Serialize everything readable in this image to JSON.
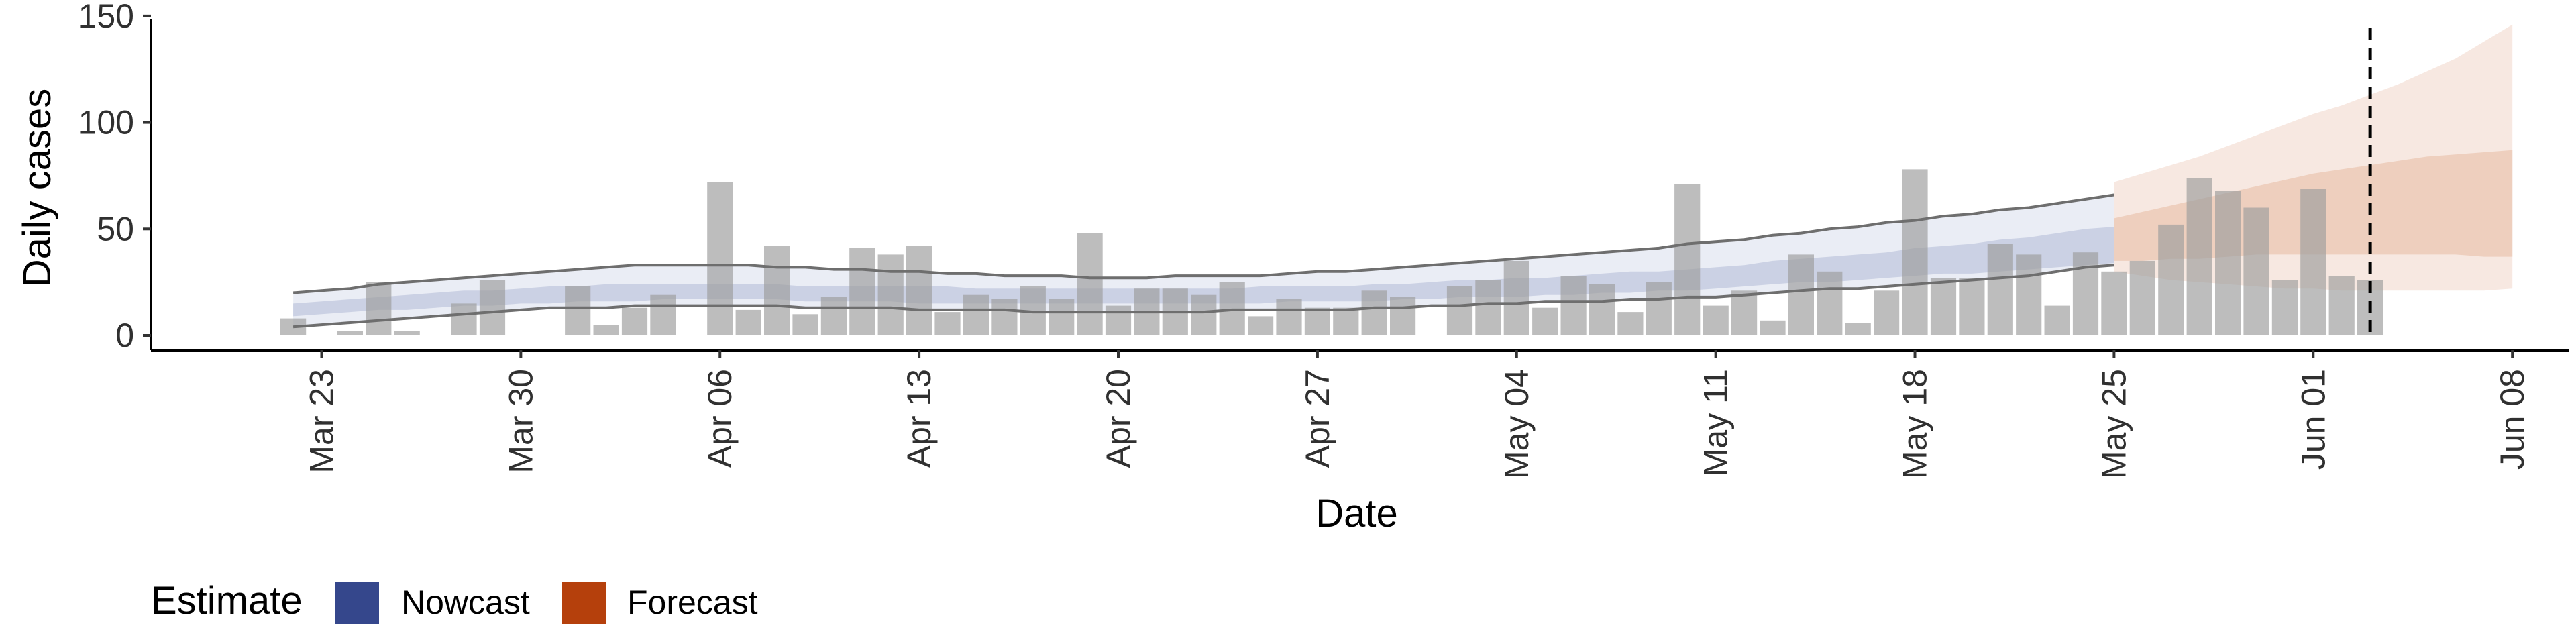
{
  "chart_data": {
    "type": "bar",
    "xlabel": "Date",
    "ylabel": "Daily cases",
    "ylim": [
      0,
      155
    ],
    "yticks": [
      0,
      50,
      100,
      150
    ],
    "x_tick_labels": [
      {
        "date": "2020-03-23",
        "label": "Mar 23"
      },
      {
        "date": "2020-03-30",
        "label": "Mar 30"
      },
      {
        "date": "2020-04-06",
        "label": "Apr 06"
      },
      {
        "date": "2020-04-13",
        "label": "Apr 13"
      },
      {
        "date": "2020-04-20",
        "label": "Apr 20"
      },
      {
        "date": "2020-04-27",
        "label": "Apr 27"
      },
      {
        "date": "2020-05-04",
        "label": "May 04"
      },
      {
        "date": "2020-05-11",
        "label": "May 11"
      },
      {
        "date": "2020-05-18",
        "label": "May 18"
      },
      {
        "date": "2020-05-25",
        "label": "May 25"
      },
      {
        "date": "2020-06-01",
        "label": "Jun 01"
      },
      {
        "date": "2020-06-08",
        "label": "Jun 08"
      }
    ],
    "xlim": [
      "2020-03-17",
      "2020-06-10"
    ],
    "vline_date": "2020-06-03",
    "grid": false,
    "legend_position": "bottom-left",
    "observed": {
      "start_date": "2020-03-22",
      "values": [
        8,
        0,
        2,
        25,
        2,
        0,
        15,
        26,
        0,
        0,
        23,
        5,
        13,
        19,
        0,
        72,
        12,
        42,
        10,
        18,
        41,
        38,
        42,
        11,
        19,
        17,
        23,
        17,
        48,
        14,
        22,
        22,
        19,
        25,
        9,
        17,
        13,
        13,
        21,
        18,
        0,
        23,
        26,
        35,
        13,
        28,
        24,
        11,
        25,
        71,
        14,
        21,
        7,
        38,
        30,
        6,
        21,
        78,
        27,
        27,
        43,
        38,
        14,
        39,
        30,
        35,
        52,
        74,
        68,
        60,
        26,
        69,
        28,
        26
      ]
    },
    "series": [
      {
        "name": "Nowcast",
        "color": "#35478C",
        "start_date": "2020-03-22",
        "median": [
          12,
          13,
          14,
          15,
          16,
          17,
          17,
          18,
          18,
          19,
          19,
          20,
          20,
          20,
          20,
          20,
          20,
          20,
          20,
          19,
          19,
          19,
          19,
          19,
          19,
          18,
          18,
          18,
          18,
          18,
          18,
          18,
          18,
          19,
          19,
          19,
          19,
          19,
          20,
          20,
          21,
          21,
          22,
          22,
          23,
          24,
          24,
          25,
          25,
          26,
          27,
          28,
          29,
          30,
          31,
          32,
          33,
          34,
          35,
          36,
          37,
          38,
          40,
          41,
          42
        ],
        "inner": {
          "lower": [
            9,
            10,
            11,
            12,
            12,
            13,
            14,
            14,
            15,
            15,
            16,
            16,
            16,
            17,
            17,
            17,
            17,
            17,
            16,
            16,
            16,
            16,
            15,
            15,
            15,
            15,
            15,
            15,
            15,
            15,
            15,
            15,
            15,
            15,
            15,
            16,
            16,
            16,
            16,
            17,
            17,
            18,
            18,
            18,
            19,
            19,
            20,
            20,
            21,
            21,
            22,
            23,
            24,
            25,
            25,
            26,
            27,
            28,
            29,
            29,
            30,
            31,
            32,
            33,
            34
          ],
          "upper": [
            15,
            16,
            17,
            18,
            19,
            20,
            21,
            21,
            22,
            23,
            23,
            24,
            24,
            24,
            24,
            24,
            24,
            24,
            23,
            23,
            23,
            23,
            23,
            23,
            22,
            22,
            22,
            22,
            22,
            22,
            22,
            22,
            22,
            22,
            23,
            23,
            23,
            23,
            24,
            24,
            25,
            26,
            26,
            27,
            27,
            28,
            29,
            30,
            30,
            31,
            32,
            33,
            35,
            36,
            37,
            38,
            39,
            41,
            42,
            43,
            45,
            46,
            48,
            50,
            51
          ]
        },
        "outer": {
          "lower": [
            4,
            5,
            6,
            7,
            8,
            9,
            10,
            11,
            12,
            13,
            13,
            13,
            14,
            14,
            14,
            14,
            14,
            14,
            13,
            13,
            13,
            13,
            12,
            12,
            12,
            12,
            11,
            11,
            11,
            11,
            11,
            11,
            11,
            12,
            12,
            12,
            12,
            12,
            13,
            13,
            14,
            14,
            15,
            15,
            16,
            16,
            16,
            17,
            17,
            18,
            18,
            19,
            20,
            21,
            22,
            22,
            23,
            24,
            25,
            26,
            27,
            28,
            30,
            32,
            33
          ],
          "upper": [
            20,
            21,
            22,
            24,
            25,
            26,
            27,
            28,
            29,
            30,
            31,
            32,
            33,
            33,
            33,
            33,
            33,
            32,
            32,
            31,
            31,
            30,
            30,
            29,
            29,
            28,
            28,
            28,
            27,
            27,
            27,
            28,
            28,
            28,
            28,
            29,
            30,
            30,
            31,
            32,
            33,
            34,
            35,
            36,
            37,
            38,
            39,
            40,
            41,
            43,
            44,
            45,
            47,
            48,
            50,
            51,
            53,
            54,
            56,
            57,
            59,
            60,
            62,
            64,
            66
          ]
        }
      },
      {
        "name": "Forecast",
        "color": "#B5400C",
        "start_date": "2020-05-25",
        "median": [
          42,
          43,
          45,
          46,
          48,
          50,
          52,
          54,
          55,
          57,
          58,
          60,
          61,
          62,
          63
        ],
        "inner": {
          "lower": [
            35,
            35,
            36,
            36,
            37,
            38,
            38,
            38,
            38,
            38,
            38,
            38,
            38,
            37,
            37
          ],
          "upper": [
            55,
            58,
            61,
            64,
            67,
            70,
            73,
            76,
            78,
            80,
            82,
            84,
            85,
            86,
            87
          ]
        },
        "outer": {
          "lower": [
            30,
            28,
            26,
            25,
            24,
            23,
            22,
            22,
            21,
            21,
            21,
            21,
            21,
            21,
            22
          ],
          "upper": [
            72,
            76,
            80,
            84,
            89,
            94,
            99,
            104,
            108,
            113,
            118,
            124,
            130,
            138,
            146
          ]
        }
      }
    ],
    "legend": {
      "title": "Estimate",
      "items": [
        {
          "label": "Nowcast",
          "color": "#35478C"
        },
        {
          "label": "Forecast",
          "color": "#B5400C"
        }
      ]
    }
  }
}
